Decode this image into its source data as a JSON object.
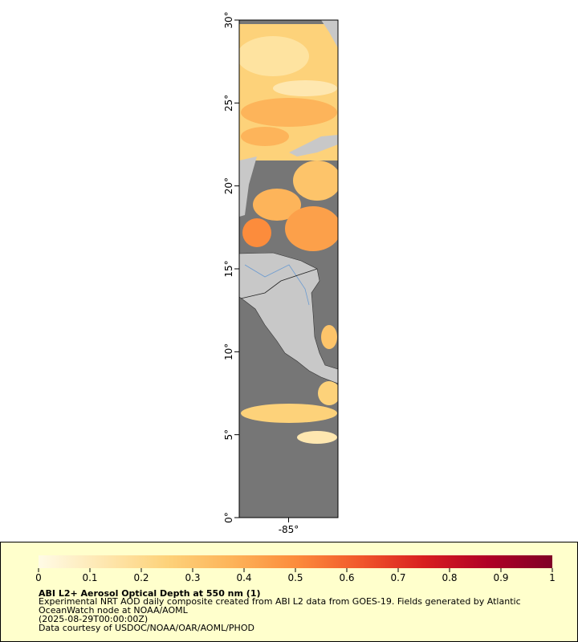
{
  "map": {
    "ylim": [
      0,
      30
    ],
    "yticks": [
      {
        "value": 0,
        "label": "0°"
      },
      {
        "value": 5,
        "label": "5°"
      },
      {
        "value": 10,
        "label": "10°"
      },
      {
        "value": 15,
        "label": "15°"
      },
      {
        "value": 20,
        "label": "20°"
      },
      {
        "value": 25,
        "label": "25°"
      },
      {
        "value": 30,
        "label": "30°"
      }
    ],
    "xlim": [
      -88,
      -82
    ],
    "xticks": [
      {
        "value": -85,
        "label": "-85°"
      }
    ]
  },
  "colorbar": {
    "lim": [
      0,
      1
    ],
    "ticks": [
      0,
      0.1,
      0.2,
      0.3,
      0.4,
      0.5,
      0.6,
      0.7,
      0.8,
      0.9,
      1
    ],
    "colors": [
      "#fffbe6",
      "#fee7b0",
      "#fdd27a",
      "#fdb45a",
      "#fc8c3c",
      "#f1582c",
      "#d81e20",
      "#b00026",
      "#800026"
    ]
  },
  "legend": {
    "title": "ABI L2+ Aerosol Optical Depth at 550 nm (1)",
    "lines": [
      "Experimental NRT AOD daily composite created from ABI L2 data from GOES-19. Fields generated by Atlantic",
      "OceanWatch node at NOAA/AOML",
      "(2025-08-29T00:00:00Z)",
      "Data courtesy of USDOC/NOAA/OAR/AOML/PHOD"
    ]
  }
}
